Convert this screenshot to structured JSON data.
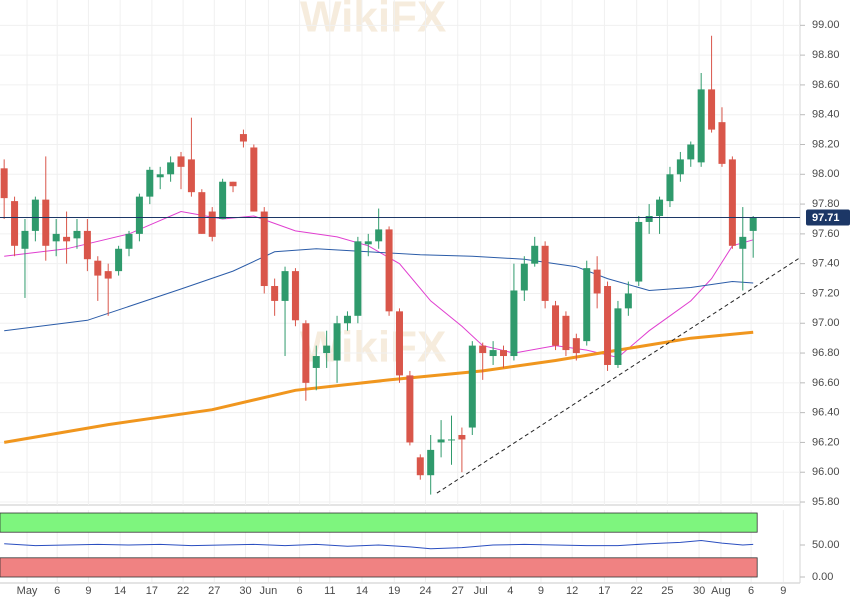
{
  "chart_data": [
    {
      "type": "candlestick",
      "watermark": "WikiFX",
      "up_color": "#2f9a6c",
      "down_color": "#d9564a",
      "open": [
        98.04,
        97.82,
        97.5,
        97.62,
        97.83,
        97.55,
        97.58,
        97.57,
        97.62,
        97.42,
        97.35,
        97.35,
        97.5,
        97.6,
        97.85,
        97.98,
        98.0,
        98.12,
        98.1,
        97.88,
        97.75,
        97.7,
        97.95,
        98.27,
        98.18,
        97.75,
        97.25,
        97.15,
        97.35,
        97.0,
        96.7,
        96.8,
        96.75,
        97.0,
        97.05,
        97.53,
        97.55,
        97.63,
        97.08,
        96.65,
        96.1,
        95.98,
        96.2,
        96.22,
        96.25,
        96.3,
        96.85,
        96.78,
        96.82,
        96.78,
        97.22,
        97.4,
        97.52,
        97.12,
        97.05,
        96.9,
        96.88,
        97.36,
        97.25,
        96.72,
        97.1,
        97.28,
        97.68,
        97.72,
        97.82,
        98.0,
        98.1,
        98.08,
        98.57,
        98.35,
        98.1,
        97.5,
        97.62
      ],
      "high": [
        98.1,
        97.85,
        97.7,
        97.85,
        98.12,
        97.7,
        97.75,
        97.7,
        97.7,
        97.45,
        97.4,
        97.52,
        97.62,
        97.87,
        98.05,
        98.05,
        98.12,
        98.15,
        98.38,
        97.9,
        97.78,
        97.97,
        97.95,
        98.3,
        98.2,
        97.78,
        97.3,
        97.38,
        97.37,
        97.02,
        96.85,
        96.95,
        97.05,
        97.08,
        97.58,
        97.6,
        97.77,
        97.65,
        97.1,
        96.68,
        96.12,
        96.25,
        96.35,
        96.38,
        96.3,
        96.88,
        96.87,
        96.88,
        96.85,
        97.4,
        97.45,
        97.58,
        97.55,
        97.15,
        97.08,
        96.93,
        97.42,
        97.45,
        97.28,
        97.15,
        97.28,
        97.72,
        97.8,
        97.85,
        98.05,
        98.15,
        98.22,
        98.68,
        98.93,
        98.45,
        98.12,
        97.78,
        97.72
      ],
      "low": [
        97.7,
        97.45,
        97.17,
        97.55,
        97.42,
        97.45,
        97.4,
        97.5,
        97.35,
        97.15,
        97.05,
        97.32,
        97.45,
        97.55,
        97.8,
        97.9,
        97.95,
        97.9,
        97.85,
        97.6,
        97.55,
        97.7,
        97.88,
        98.18,
        97.75,
        97.2,
        97.05,
        96.78,
        96.98,
        96.48,
        96.55,
        96.7,
        96.6,
        96.95,
        97.0,
        97.45,
        97.5,
        97.05,
        96.6,
        96.18,
        95.95,
        95.85,
        96.1,
        96.05,
        96.0,
        96.25,
        96.62,
        96.72,
        96.7,
        96.75,
        97.15,
        97.38,
        97.1,
        96.82,
        96.78,
        96.75,
        96.85,
        97.1,
        96.68,
        96.7,
        97.05,
        97.25,
        97.6,
        97.6,
        97.78,
        97.95,
        98.05,
        98.05,
        98.28,
        98.05,
        97.5,
        97.22,
        97.44
      ],
      "close": [
        97.84,
        97.52,
        97.62,
        97.83,
        97.52,
        97.6,
        97.55,
        97.62,
        97.43,
        97.32,
        97.3,
        97.5,
        97.6,
        97.85,
        98.03,
        98.0,
        98.08,
        98.05,
        97.88,
        97.6,
        97.58,
        97.95,
        97.92,
        98.22,
        97.75,
        97.25,
        97.15,
        97.35,
        97.02,
        96.6,
        96.78,
        96.85,
        97.0,
        97.05,
        97.55,
        97.55,
        97.63,
        97.08,
        96.65,
        96.2,
        95.98,
        96.15,
        96.22,
        96.22,
        96.22,
        96.85,
        96.8,
        96.82,
        96.78,
        97.22,
        97.4,
        97.52,
        97.15,
        96.85,
        96.82,
        96.8,
        97.37,
        97.2,
        96.72,
        97.1,
        97.2,
        97.68,
        97.72,
        97.83,
        98.0,
        98.1,
        98.2,
        98.57,
        98.3,
        98.07,
        97.52,
        97.58,
        97.71
      ],
      "overlays": [
        {
          "color": "#e03fd0",
          "width": 1,
          "x": [
            0,
            6,
            12,
            17,
            21,
            24,
            28,
            32,
            35,
            38,
            41,
            44,
            46,
            49,
            53,
            56,
            59,
            62,
            64,
            66,
            68,
            70,
            72
          ],
          "values": [
            97.45,
            97.5,
            97.6,
            97.75,
            97.7,
            97.72,
            97.62,
            97.58,
            97.52,
            97.4,
            97.15,
            96.98,
            96.85,
            96.8,
            96.85,
            96.82,
            96.77,
            96.95,
            97.05,
            97.15,
            97.3,
            97.52,
            97.56
          ]
        },
        {
          "color": "#2b5ca8",
          "width": 1,
          "x": [
            0,
            8,
            17,
            22,
            26,
            30,
            35,
            40,
            45,
            50,
            55,
            58,
            62,
            66,
            70,
            72
          ],
          "values": [
            96.95,
            97.02,
            97.23,
            97.35,
            97.48,
            97.5,
            97.48,
            97.46,
            97.45,
            97.43,
            97.38,
            97.3,
            97.22,
            97.24,
            97.28,
            97.27
          ]
        },
        {
          "color": "#f0961e",
          "width": 3,
          "x": [
            0,
            10,
            20,
            28,
            37,
            46,
            53,
            59,
            66,
            72
          ],
          "values": [
            96.2,
            96.32,
            96.42,
            96.55,
            96.62,
            96.68,
            96.75,
            96.82,
            96.9,
            96.94
          ]
        }
      ],
      "trendline": {
        "color": "#222222",
        "x": [
          41.6,
          76.5
        ],
        "values": [
          95.86,
          97.44
        ]
      },
      "last_price": {
        "value": 97.71,
        "label": "97.71",
        "color": "#1c3766"
      },
      "xlim": [
        -0.4,
        76.5
      ],
      "ylim": [
        95.78,
        99.17
      ],
      "yticks": [
        {
          "value": 95.8,
          "label": "95.80"
        },
        {
          "value": 96.0,
          "label": "96.00"
        },
        {
          "value": 96.2,
          "label": "96.20"
        },
        {
          "value": 96.4,
          "label": "96.40"
        },
        {
          "value": 96.6,
          "label": "96.60"
        },
        {
          "value": 96.8,
          "label": "96.80"
        },
        {
          "value": 97.0,
          "label": "97.00"
        },
        {
          "value": 97.2,
          "label": "97.20"
        },
        {
          "value": 97.4,
          "label": "97.40"
        },
        {
          "value": 97.6,
          "label": "97.60"
        },
        {
          "value": 97.8,
          "label": "97.80"
        },
        {
          "value": 98.0,
          "label": "98.00"
        },
        {
          "value": 98.2,
          "label": "98.20"
        },
        {
          "value": 98.4,
          "label": "98.40"
        },
        {
          "value": 98.6,
          "label": "98.60"
        },
        {
          "value": 98.8,
          "label": "98.80"
        },
        {
          "value": 99.0,
          "label": "99.00"
        }
      ],
      "grid": true
    },
    {
      "type": "line",
      "series": [
        {
          "color": "#2b4fc0",
          "x": [
            0,
            3,
            6,
            9,
            12,
            15,
            18,
            21,
            24,
            27,
            30,
            33,
            36,
            39,
            41,
            44,
            47,
            50,
            53,
            56,
            59,
            62,
            65,
            67,
            69,
            71,
            72
          ],
          "values": [
            52,
            49,
            50,
            51,
            50,
            51,
            49,
            50,
            51,
            49,
            51,
            48,
            50,
            47,
            44,
            46,
            50,
            51,
            50,
            49,
            49,
            52,
            54,
            57,
            53,
            50,
            51
          ]
        }
      ],
      "bands": [
        {
          "from": 70,
          "to": 100,
          "color": "#7ef57e"
        },
        {
          "from": 0,
          "to": 30,
          "color": "#f08282"
        }
      ],
      "xlim": [
        -0.4,
        76.5
      ],
      "ylim": [
        -7.8,
        104.7
      ],
      "yticks": [
        {
          "value": 0,
          "label": "0.00"
        },
        {
          "value": 50,
          "label": "50.00"
        }
      ],
      "xticks": [
        {
          "value": 2.2,
          "label": "May"
        },
        {
          "value": 5.1,
          "label": "6"
        },
        {
          "value": 8.1,
          "label": "9"
        },
        {
          "value": 11.15,
          "label": "14"
        },
        {
          "value": 14.2,
          "label": "17"
        },
        {
          "value": 17.2,
          "label": "22"
        },
        {
          "value": 20.2,
          "label": "27"
        },
        {
          "value": 23.2,
          "label": "30"
        },
        {
          "value": 25.4,
          "label": "Jun"
        },
        {
          "value": 28.4,
          "label": "6"
        },
        {
          "value": 31.3,
          "label": "11"
        },
        {
          "value": 34.4,
          "label": "14"
        },
        {
          "value": 37.5,
          "label": "19"
        },
        {
          "value": 40.5,
          "label": "24"
        },
        {
          "value": 43.6,
          "label": "27"
        },
        {
          "value": 45.8,
          "label": "Jul"
        },
        {
          "value": 48.65,
          "label": "4"
        },
        {
          "value": 51.6,
          "label": "9"
        },
        {
          "value": 54.6,
          "label": "12"
        },
        {
          "value": 57.7,
          "label": "17"
        },
        {
          "value": 60.8,
          "label": "22"
        },
        {
          "value": 63.75,
          "label": "25"
        },
        {
          "value": 66.8,
          "label": "30"
        },
        {
          "value": 68.9,
          "label": "Aug"
        },
        {
          "value": 71.8,
          "label": "6"
        },
        {
          "value": 74.9,
          "label": "9"
        }
      ]
    }
  ]
}
